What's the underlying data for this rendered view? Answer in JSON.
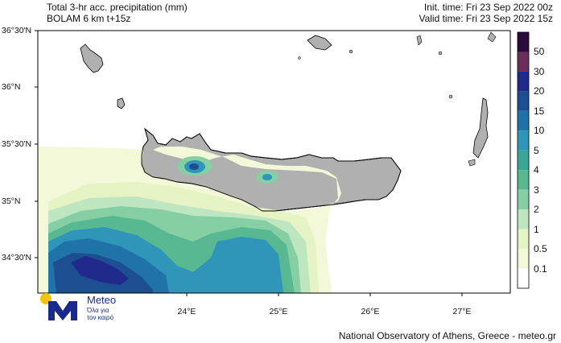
{
  "header": {
    "title_line1": "Total 3-hr acc. precipitation (mm)",
    "title_line2": "BOLAM 6 km t+15z",
    "init_time": "Init. time: Fri 23 Sep 2022 00z",
    "valid_time": "Valid time: Fri 23 Sep 2022 15z"
  },
  "axes": {
    "lat_labels": [
      "36°30'N",
      "36°N",
      "35°30'N",
      "35°N",
      "34°30'N"
    ],
    "lon_labels": [
      "24°E",
      "25°E",
      "26°E",
      "27°E"
    ]
  },
  "colorbar": {
    "labels": [
      "50",
      "30",
      "20",
      "15",
      "10",
      "5",
      "4",
      "3",
      "2",
      "1",
      "0.5",
      "0.1"
    ],
    "colors": [
      "#2b0a3d",
      "#6b2d5c",
      "#1f2a8a",
      "#1d4e92",
      "#1f73a8",
      "#2f95b9",
      "#3aa695",
      "#58b891",
      "#86cfa5",
      "#bde6c1",
      "#e6f3c5",
      "#f3f8d8",
      "#ffffff"
    ]
  },
  "logo": {
    "name": "Meteo",
    "tagline_line1": "Όλα για",
    "tagline_line2": "τον καιρό"
  },
  "footer": "National Observatory of Athens, Greece - meteo.gr"
}
